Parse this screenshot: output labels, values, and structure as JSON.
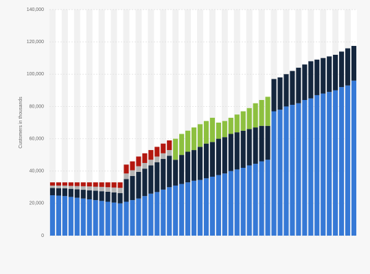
{
  "chart_data": {
    "type": "stacked-bar",
    "y_label": "Customers in thousands",
    "ylim": [
      0,
      140000
    ],
    "yticks": [
      0,
      {
        "value": 20000,
        "label": "20,000"
      },
      {
        "value": 40000,
        "label": "40,000"
      },
      {
        "value": 60000,
        "label": "60,000"
      },
      {
        "value": 80000,
        "label": "80,000"
      },
      {
        "value": 100000,
        "label": "100,000"
      },
      {
        "value": 120000,
        "label": "120,000"
      },
      {
        "value": 140000,
        "label": "140,000"
      }
    ],
    "grid": true,
    "categories": [
      null,
      null,
      null,
      null,
      null,
      null,
      null,
      null,
      null,
      null,
      null,
      null,
      null,
      null,
      null,
      null,
      null,
      null,
      null,
      null,
      null,
      null,
      null,
      null,
      null,
      null,
      null,
      null,
      null,
      null,
      null,
      null,
      null,
      null,
      null,
      null,
      null,
      null,
      null,
      null,
      null,
      null,
      null,
      null,
      null,
      null,
      null,
      null,
      null,
      null
    ],
    "series": [
      {
        "color": "#3679d6",
        "values": [
          25000,
          24800,
          24500,
          24000,
          23500,
          23000,
          22500,
          22000,
          21500,
          21000,
          20500,
          20000,
          21000,
          22000,
          23000,
          24500,
          26000,
          27000,
          28500,
          30000,
          31000,
          32000,
          33000,
          34000,
          34500,
          35500,
          36500,
          37500,
          38500,
          40000,
          41000,
          42000,
          43500,
          44500,
          46000,
          47000,
          77000,
          78000,
          80000,
          81000,
          82000,
          84000,
          85000,
          87000,
          88000,
          89000,
          90000,
          92000,
          93000,
          96000
        ]
      },
      {
        "color": "#14263d",
        "values": [
          4500,
          4600,
          4800,
          5000,
          5200,
          5400,
          5600,
          5800,
          6000,
          6200,
          6300,
          6400,
          14000,
          15000,
          16500,
          17000,
          17500,
          18500,
          19000,
          19500,
          16000,
          18000,
          19000,
          19000,
          20500,
          21500,
          21500,
          22500,
          22500,
          23000,
          23000,
          23000,
          22500,
          22500,
          22000,
          21000,
          20000,
          20000,
          20000,
          21000,
          22000,
          22000,
          23000,
          22000,
          22000,
          22000,
          22000,
          22000,
          23000,
          21500
        ]
      },
      {
        "color": "#b4b4b4",
        "values": [
          1500,
          1600,
          1700,
          1800,
          2000,
          2200,
          2400,
          2500,
          2700,
          2800,
          3000,
          3200,
          3500,
          3500,
          3500,
          3500,
          3500,
          3500,
          3500,
          3500,
          null,
          null,
          null,
          null,
          null,
          null,
          null,
          null,
          null,
          null,
          null,
          null,
          null,
          null,
          null,
          null,
          null,
          null,
          null,
          null,
          null,
          null,
          null,
          null,
          null,
          null,
          null,
          null,
          null,
          null
        ]
      },
      {
        "color": "#b3170f",
        "values": [
          2000,
          2000,
          2000,
          2200,
          2300,
          2400,
          2500,
          2700,
          2800,
          3000,
          3200,
          3400,
          5500,
          5500,
          6000,
          6000,
          6000,
          6000,
          6000,
          6000,
          null,
          null,
          null,
          null,
          null,
          null,
          null,
          null,
          null,
          null,
          null,
          null,
          null,
          null,
          null,
          null,
          null,
          null,
          null,
          null,
          null,
          null,
          null,
          null,
          null,
          null,
          null,
          null,
          null,
          null
        ]
      },
      {
        "color": "#8dc03f",
        "values": [
          null,
          null,
          null,
          null,
          null,
          null,
          null,
          null,
          null,
          null,
          null,
          null,
          null,
          null,
          null,
          null,
          null,
          null,
          null,
          null,
          13000,
          13000,
          13000,
          14000,
          14000,
          14000,
          15000,
          10000,
          10000,
          10000,
          11000,
          12000,
          13000,
          15000,
          16000,
          18000,
          null,
          null,
          null,
          null,
          null,
          null,
          null,
          null,
          null,
          null,
          null,
          null,
          null,
          null
        ]
      }
    ]
  }
}
